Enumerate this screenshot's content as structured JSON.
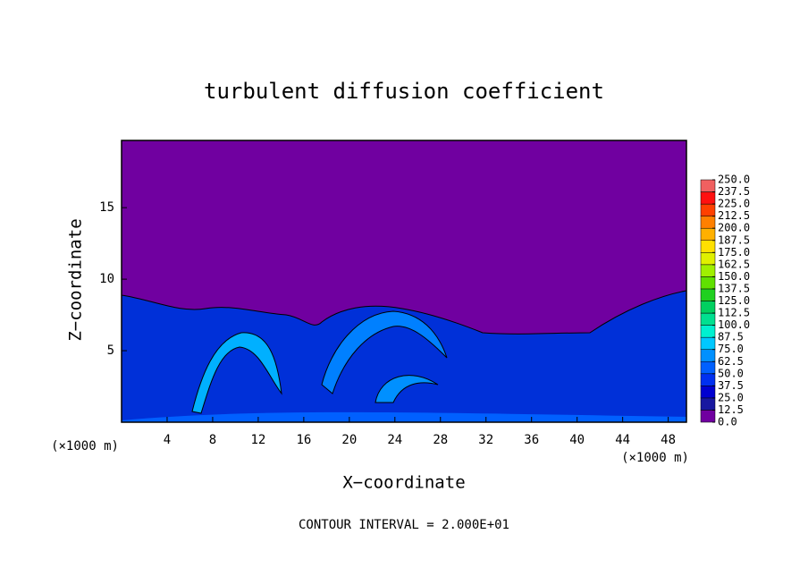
{
  "chart_data": {
    "type": "field",
    "title": "turbulent diffusion coefficient",
    "x_label": "X−coordinate",
    "y_label": "Z−coordinate",
    "x_unit_left": "(×1000 m)",
    "x_unit_right": "(×1000 m)",
    "note": "CONTOUR INTERVAL = 2.000E+01",
    "xlim": [
      0,
      49.6
    ],
    "xticks": [
      4,
      8,
      12,
      16,
      20,
      24,
      28,
      32,
      36,
      40,
      44,
      48
    ],
    "ylim": [
      0,
      19.7
    ],
    "yticks": [
      5,
      10,
      15
    ],
    "colorbar": {
      "lim": [
        0,
        250
      ],
      "ticks": [
        {
          "value": 0,
          "label": "0.0"
        },
        12.5,
        {
          "value": 25,
          "label": "25.0"
        },
        37.5,
        {
          "value": 50,
          "label": "50.0"
        },
        62.5,
        {
          "value": 75,
          "label": "75.0"
        },
        87.5,
        {
          "value": 100,
          "label": "100.0"
        },
        112.5,
        {
          "value": 125,
          "label": "125.0"
        },
        137.5,
        {
          "value": 150,
          "label": "150.0"
        },
        162.5,
        {
          "value": 175,
          "label": "175.0"
        },
        187.5,
        {
          "value": 200,
          "label": "200.0"
        },
        212.5,
        {
          "value": 225,
          "label": "225.0"
        },
        237.5,
        {
          "value": 250,
          "label": "250.0"
        }
      ],
      "colors": [
        "#7000a0",
        "#1818a0",
        "#0000d0",
        "#0030f0",
        "#0060ff",
        "#0090ff",
        "#00c8ff",
        "#00f0d0",
        "#00e090",
        "#00d060",
        "#20d020",
        "#60e000",
        "#a0f000",
        "#e0f000",
        "#ffe000",
        "#ffb000",
        "#ff8000",
        "#ff4000",
        "#ff1010",
        "#f06060"
      ]
    }
  }
}
